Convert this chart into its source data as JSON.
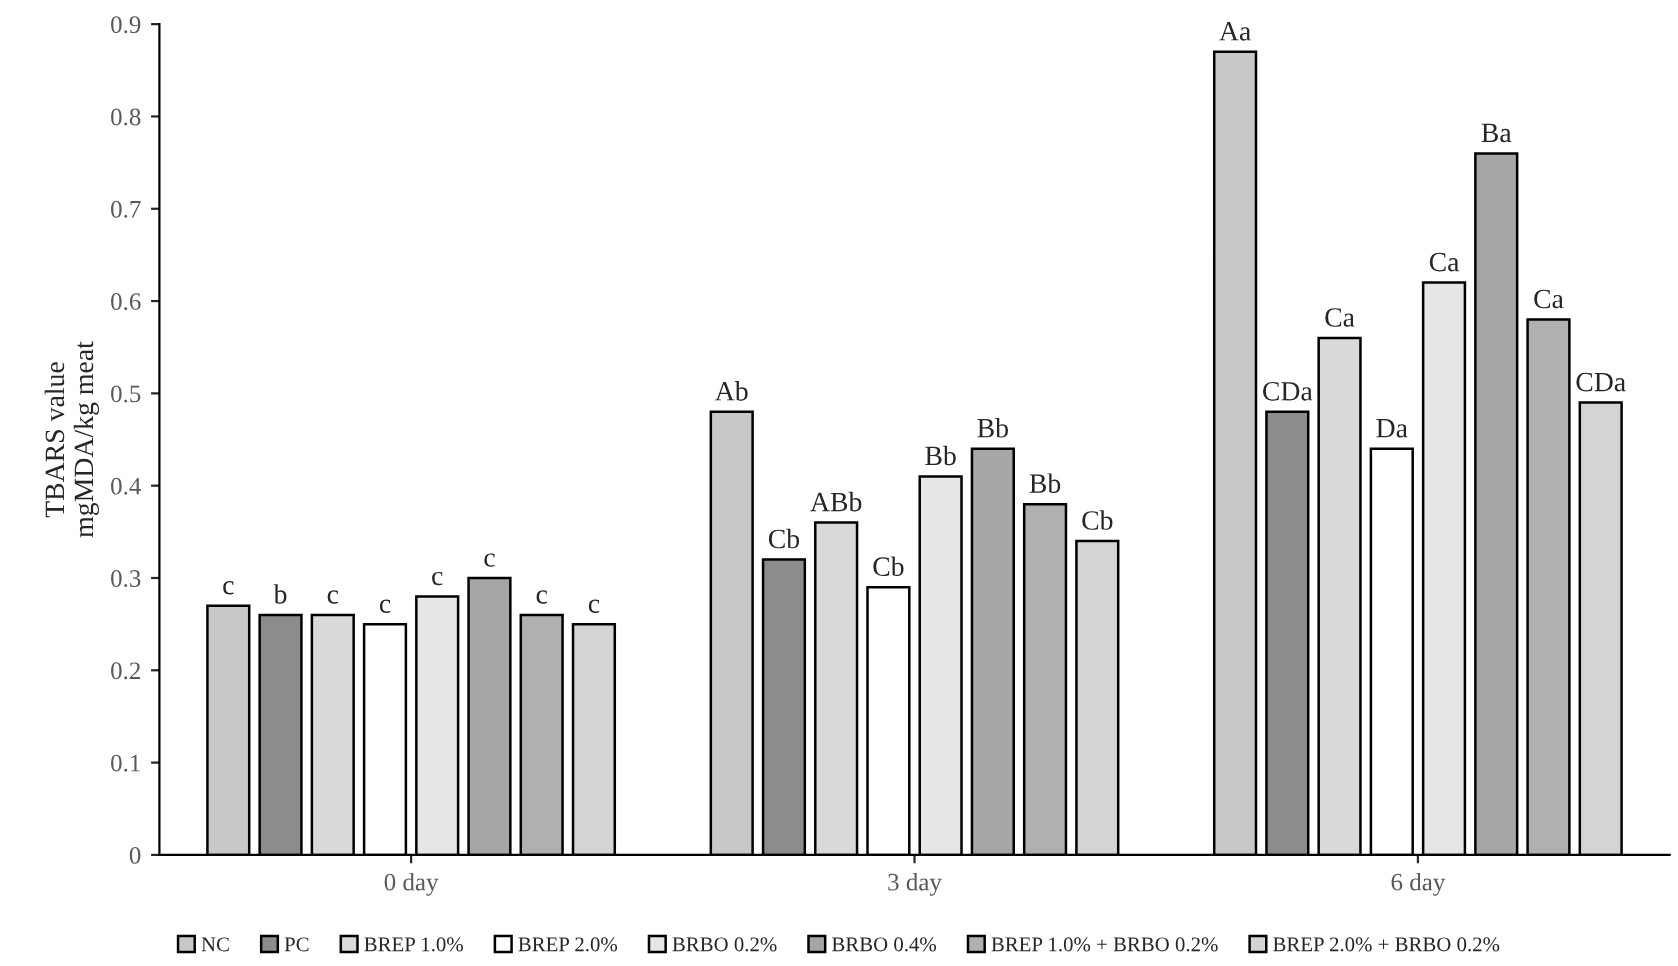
{
  "chart_data": {
    "type": "bar",
    "ylabel": "TBARS value\nmgMDA/kg meat",
    "categories": [
      "0 day",
      "3 day",
      "6 day"
    ],
    "series": [
      {
        "name": "NC",
        "color": "#c8c8c8",
        "values": [
          0.27,
          0.48,
          0.87
        ],
        "value_labels": [
          "c",
          "Ab",
          "Aa"
        ]
      },
      {
        "name": "PC",
        "color": "#8c8c8c",
        "values": [
          0.26,
          0.32,
          0.48
        ],
        "value_labels": [
          "b",
          "Cb",
          "CDa"
        ]
      },
      {
        "name": "BREP 1.0%",
        "color": "#d9d9d9",
        "values": [
          0.26,
          0.36,
          0.56
        ],
        "value_labels": [
          "c",
          "ABb",
          "Ca"
        ]
      },
      {
        "name": "BREP 2.0%",
        "color": "#ffffff",
        "values": [
          0.25,
          0.29,
          0.44
        ],
        "value_labels": [
          "c",
          "Cb",
          "Da"
        ]
      },
      {
        "name": "BRBO 0.2%",
        "color": "#e6e6e6",
        "values": [
          0.28,
          0.41,
          0.62
        ],
        "value_labels": [
          "c",
          "Bb",
          "Ca"
        ]
      },
      {
        "name": "BRBO 0.4%",
        "color": "#a6a6a6",
        "values": [
          0.3,
          0.44,
          0.76
        ],
        "value_labels": [
          "c",
          "Bb",
          "Ba"
        ]
      },
      {
        "name": "BREP 1.0% + BRBO 0.2%",
        "color": "#b0b0b0",
        "values": [
          0.26,
          0.38,
          0.58
        ],
        "value_labels": [
          "c",
          "Bb",
          "Ca"
        ]
      },
      {
        "name": "BREP 2.0% + BRBO 0.2%",
        "color": "#d4d4d4",
        "values": [
          0.25,
          0.34,
          0.49
        ],
        "value_labels": [
          "c",
          "Cb",
          "CDa"
        ]
      }
    ],
    "ylim": [
      0,
      0.9
    ],
    "yticks": [
      0,
      0.1,
      0.2,
      0.3,
      0.4,
      0.5,
      0.6,
      0.7,
      0.8,
      0.9
    ],
    "grid": false,
    "legend": "bottom"
  }
}
